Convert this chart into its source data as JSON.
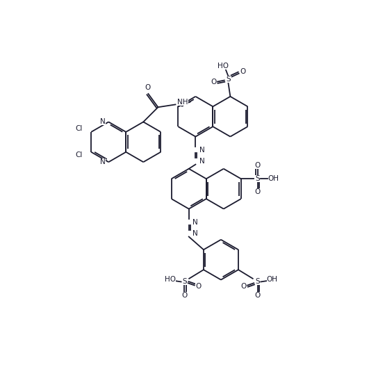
{
  "background": "#ffffff",
  "bond_color": "#1a1a2e",
  "lw": 1.3,
  "dbo": 0.06,
  "fs": 7.5,
  "figsize": [
    5.31,
    5.41
  ],
  "dpi": 100,
  "xlim": [
    0,
    10.62
  ],
  "ylim": [
    0,
    10.82
  ]
}
